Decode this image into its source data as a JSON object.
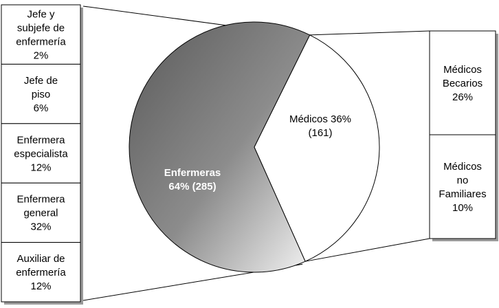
{
  "chart_data": {
    "type": "pie",
    "title": "",
    "slices": [
      {
        "name": "Enfermeras",
        "percent": 64,
        "count": 285,
        "label_lines": [
          "Enfermeras",
          "64% (285)"
        ],
        "fill": "gradient-gray",
        "label_color": "#ffffff",
        "bold": true
      },
      {
        "name": "Médicos",
        "percent": 36,
        "count": 161,
        "label_lines": [
          "Médicos 36%",
          "(161)"
        ],
        "fill": "#ffffff",
        "label_color": "#000000",
        "bold": false
      }
    ],
    "left_breakdown": {
      "parent": "Enfermeras",
      "segments": [
        {
          "name": "Jefe y subjefe de enfermería",
          "percent": 2,
          "label_lines": [
            "Jefe y",
            "subjefe de",
            "enfermería",
            "2%"
          ]
        },
        {
          "name": "Jefe de piso",
          "percent": 6,
          "label_lines": [
            "Jefe de",
            "piso",
            "6%"
          ]
        },
        {
          "name": "Enfermera especialista",
          "percent": 12,
          "label_lines": [
            "Enfermera",
            "especialista",
            "12%"
          ]
        },
        {
          "name": "Enfermera general",
          "percent": 32,
          "label_lines": [
            "Enfermera",
            "general",
            "32%"
          ]
        },
        {
          "name": "Auxiliar de enfermería",
          "percent": 12,
          "label_lines": [
            "Auxiliar de",
            "enfermería",
            "12%"
          ]
        }
      ]
    },
    "right_breakdown": {
      "parent": "Médicos",
      "segments": [
        {
          "name": "Médicos Becarios",
          "percent": 26,
          "label_lines": [
            "Médicos",
            "Becarios",
            "26%"
          ]
        },
        {
          "name": "Médicos no Familiares",
          "percent": 10,
          "label_lines": [
            "Médicos",
            "no",
            "Familiares",
            "10%"
          ]
        }
      ]
    },
    "colors": {
      "dark_gray": "#5a5a5a",
      "light_gray": "#f2f2f2",
      "outline": "#000000",
      "shadow": "#9a9a9a"
    }
  }
}
